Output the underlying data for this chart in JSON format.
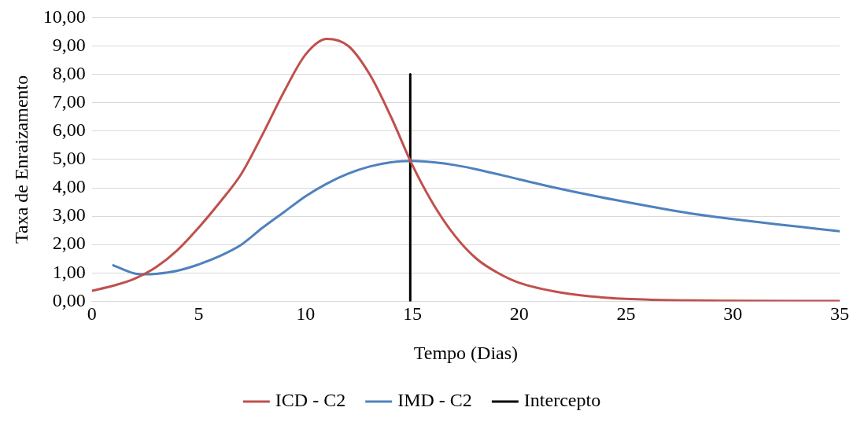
{
  "chart_data": {
    "type": "line",
    "xlabel": "Tempo (Dias)",
    "ylabel": "Taxa de Enraizamento",
    "xlim": [
      0,
      35
    ],
    "xticks": [
      0,
      5,
      10,
      15,
      20,
      25,
      30,
      35
    ],
    "ylim": [
      0,
      10
    ],
    "yticks": [
      {
        "value": 0,
        "label": "0,00"
      },
      {
        "value": 1,
        "label": "1,00"
      },
      {
        "value": 2,
        "label": "2,00"
      },
      {
        "value": 3,
        "label": "3,00"
      },
      {
        "value": 4,
        "label": "4,00"
      },
      {
        "value": 5,
        "label": "5,00"
      },
      {
        "value": 6,
        "label": "6,00"
      },
      {
        "value": 7,
        "label": "7,00"
      },
      {
        "value": 8,
        "label": "8,00"
      },
      {
        "value": 9,
        "label": "9,00"
      },
      {
        "value": 10,
        "label": "10,00"
      }
    ],
    "grid": "y",
    "legend": "bottom",
    "marker": "none",
    "line_style": "solid",
    "series": [
      {
        "name": "ICD - C2",
        "color": "#c0504d",
        "x": [
          0,
          1,
          2,
          3,
          4,
          5,
          6,
          7,
          8,
          9,
          10,
          11,
          12,
          13,
          14,
          15,
          16,
          17,
          18,
          19,
          20,
          22,
          24,
          26,
          28,
          30,
          35
        ],
        "values": [
          0.37,
          0.55,
          0.8,
          1.2,
          1.8,
          2.6,
          3.5,
          4.5,
          5.9,
          7.4,
          8.7,
          9.25,
          9.0,
          8.0,
          6.5,
          4.8,
          3.4,
          2.3,
          1.5,
          1.0,
          0.65,
          0.3,
          0.13,
          0.06,
          0.03,
          0.02,
          0.01
        ]
      },
      {
        "name": "IMD - C2",
        "color": "#4f81bd",
        "x": [
          1,
          2,
          2.5,
          3,
          4,
          5,
          6,
          7,
          8,
          9,
          10,
          11,
          12,
          13,
          14,
          15,
          16,
          17,
          18,
          20,
          22,
          25,
          28,
          30,
          32,
          35
        ],
        "values": [
          1.27,
          0.98,
          0.95,
          0.97,
          1.08,
          1.3,
          1.6,
          2.0,
          2.6,
          3.15,
          3.7,
          4.15,
          4.5,
          4.75,
          4.9,
          4.95,
          4.9,
          4.8,
          4.65,
          4.3,
          3.95,
          3.5,
          3.1,
          2.9,
          2.72,
          2.47
        ]
      },
      {
        "name": "Intercepto",
        "color": "#000000",
        "x": [
          14.9,
          14.9
        ],
        "values": [
          0,
          8
        ]
      }
    ]
  }
}
